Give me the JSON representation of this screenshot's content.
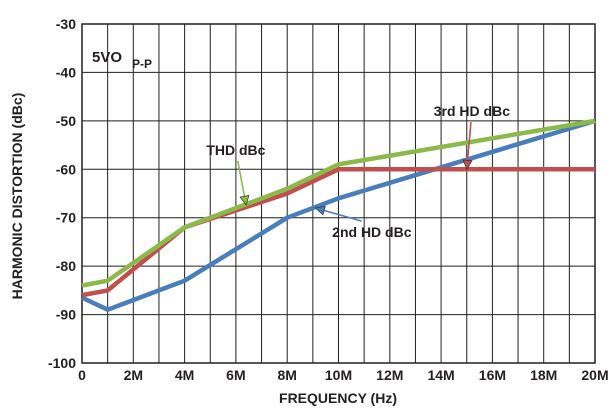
{
  "chart_data": {
    "type": "line",
    "title": "",
    "xlabel": "FREQUENCY (Hz)",
    "ylabel": "HARMONIC DISTORTION (dBc)",
    "xlim": [
      0,
      20000000
    ],
    "ylim": [
      -100,
      -30
    ],
    "xticks": [
      {
        "value": 0,
        "label": "0"
      },
      {
        "value": 2000000,
        "label": "2M"
      },
      {
        "value": 4000000,
        "label": "4M"
      },
      {
        "value": 6000000,
        "label": "6M"
      },
      {
        "value": 8000000,
        "label": "8M"
      },
      {
        "value": 10000000,
        "label": "10M"
      },
      {
        "value": 12000000,
        "label": "12M"
      },
      {
        "value": 14000000,
        "label": "14M"
      },
      {
        "value": 16000000,
        "label": "16M"
      },
      {
        "value": 18000000,
        "label": "18M"
      },
      {
        "value": 20000000,
        "label": "20M"
      }
    ],
    "yticks": [
      {
        "value": -30,
        "label": "-30"
      },
      {
        "value": -40,
        "label": "-40"
      },
      {
        "value": -50,
        "label": "-50"
      },
      {
        "value": -60,
        "label": "-60"
      },
      {
        "value": -70,
        "label": "-70"
      },
      {
        "value": -80,
        "label": "-80"
      },
      {
        "value": -90,
        "label": "-90"
      },
      {
        "value": -100,
        "label": "-100"
      }
    ],
    "grid": true,
    "condition_label": {
      "main": "5VO",
      "subscript": "P-P"
    },
    "series": [
      {
        "name": "THD dBc",
        "color": "#8cba4a",
        "x": [
          0,
          1000000,
          4000000,
          8000000,
          10000000,
          20000000
        ],
        "y": [
          -84,
          -83,
          -72,
          -64,
          -59,
          -50
        ]
      },
      {
        "name": "3rd HD dBc",
        "color": "#c0504d",
        "x": [
          0,
          1000000,
          4000000,
          8000000,
          10000000,
          20000000
        ],
        "y": [
          -86,
          -85,
          -72,
          -65,
          -60,
          -60
        ]
      },
      {
        "name": "2nd HD dBc",
        "color": "#4a7dbc",
        "x": [
          0,
          1000000,
          4000000,
          8000000,
          10000000,
          20000000
        ],
        "y": [
          -86.5,
          -89,
          -83,
          -70,
          -66,
          -50
        ]
      }
    ],
    "annotations": [
      {
        "series": 0,
        "label": "THD dBc",
        "text_x": 6000000,
        "text_y": -57,
        "arrow_x": 6400000,
        "arrow_y": -67.4
      },
      {
        "series": 1,
        "label": "3rd HD dBc",
        "text_x": 15200000,
        "text_y": -49,
        "arrow_x": 15000000,
        "arrow_y": -60
      },
      {
        "series": 2,
        "label": "2nd HD dBc",
        "text_x": 11300000,
        "text_y": -74,
        "arrow_x": 9100000,
        "arrow_y": -68
      }
    ]
  }
}
